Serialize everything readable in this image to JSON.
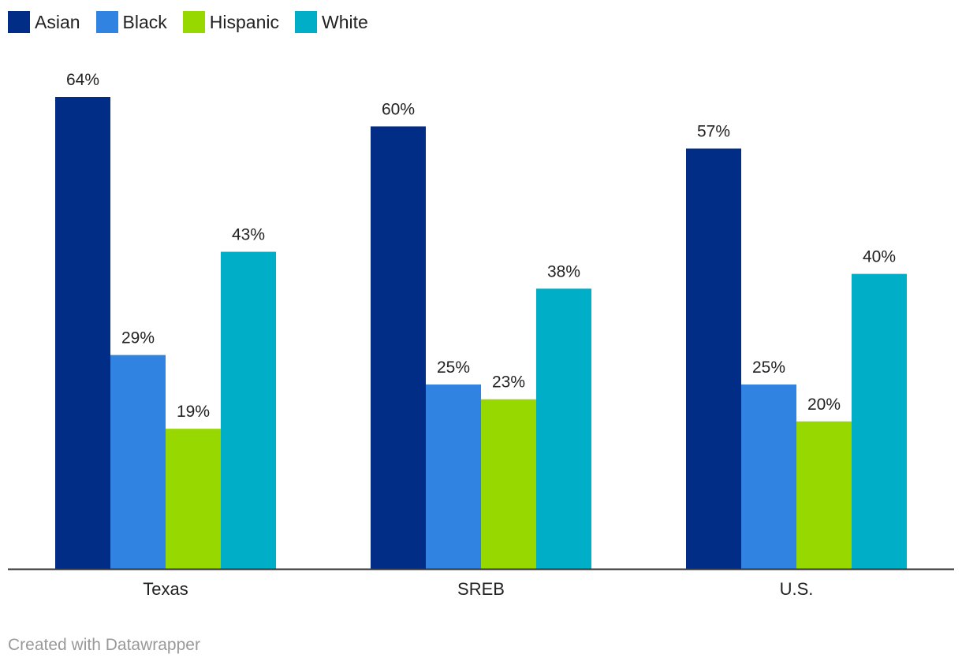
{
  "chart_data": {
    "type": "bar",
    "categories": [
      "Texas",
      "SREB",
      "U.S."
    ],
    "series": [
      {
        "name": "Asian",
        "color": "#022d86",
        "values": [
          64,
          60,
          57
        ]
      },
      {
        "name": "Black",
        "color": "#3183e2",
        "values": [
          29,
          25,
          25
        ]
      },
      {
        "name": "Hispanic",
        "color": "#96d800",
        "values": [
          19,
          23,
          20
        ]
      },
      {
        "name": "White",
        "color": "#00aec7",
        "values": [
          43,
          38,
          40
        ]
      }
    ],
    "value_suffix": "%",
    "ylim": [
      0,
      64
    ],
    "grid": false,
    "legend_position": "top-left",
    "title": "",
    "xlabel": "",
    "ylabel": ""
  },
  "footer": {
    "credit": "Created with Datawrapper"
  }
}
